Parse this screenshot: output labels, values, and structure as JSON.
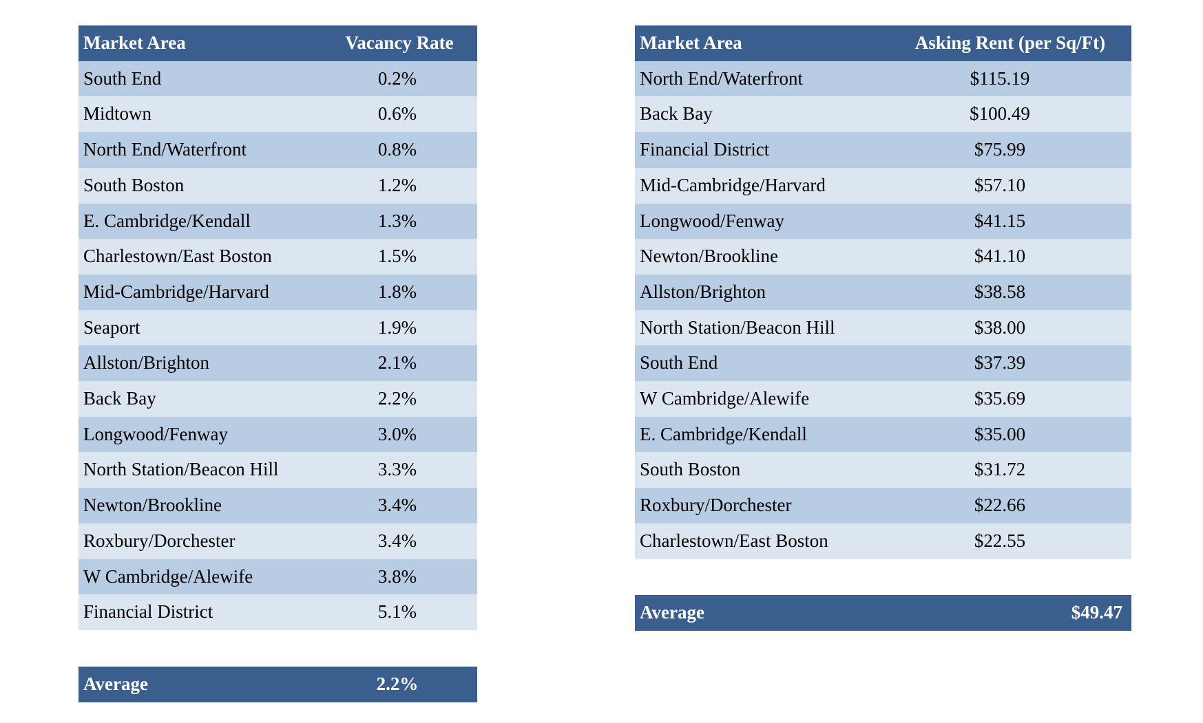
{
  "tables": [
    {
      "header": [
        "Market Area",
        "Vacancy Rate"
      ],
      "rows": [
        [
          "South End",
          "0.2%"
        ],
        [
          "Midtown",
          "0.6%"
        ],
        [
          "North End/Waterfront",
          "0.8%"
        ],
        [
          "South Boston",
          "1.2%"
        ],
        [
          "E. Cambridge/Kendall",
          "1.3%"
        ],
        [
          "Charlestown/East Boston",
          "1.5%"
        ],
        [
          "Mid-Cambridge/Harvard",
          "1.8%"
        ],
        [
          "Seaport",
          "1.9%"
        ],
        [
          "Allston/Brighton",
          "2.1%"
        ],
        [
          "Back Bay",
          "2.2%"
        ],
        [
          "Longwood/Fenway",
          "3.0%"
        ],
        [
          "North Station/Beacon Hill",
          "3.3%"
        ],
        [
          "Newton/Brookline",
          "3.4%"
        ],
        [
          "Roxbury/Dorchester",
          "3.4%"
        ],
        [
          "W Cambridge/Alewife",
          "3.8%"
        ],
        [
          "Financial District",
          "5.1%"
        ]
      ],
      "average": [
        "Average",
        "2.2%"
      ]
    },
    {
      "header": [
        "Market Area",
        "Asking Rent (per Sq/Ft)"
      ],
      "rows": [
        [
          "North End/Waterfront",
          "$115.19"
        ],
        [
          "Back Bay",
          "$100.49"
        ],
        [
          "Financial District",
          "$75.99"
        ],
        [
          "Mid-Cambridge/Harvard",
          "$57.10"
        ],
        [
          "Longwood/Fenway",
          "$41.15"
        ],
        [
          "Newton/Brookline",
          "$41.10"
        ],
        [
          "Allston/Brighton",
          "$38.58"
        ],
        [
          "North Station/Beacon Hill",
          "$38.00"
        ],
        [
          "South End",
          "$37.39"
        ],
        [
          "W Cambridge/Alewife",
          "$35.69"
        ],
        [
          "E. Cambridge/Kendall",
          "$35.00"
        ],
        [
          "South Boston",
          "$31.72"
        ],
        [
          "Roxbury/Dorchester",
          "$22.66"
        ],
        [
          "Charlestown/East Boston",
          "$22.55"
        ]
      ],
      "average": [
        "Average",
        "$49.47"
      ]
    }
  ]
}
